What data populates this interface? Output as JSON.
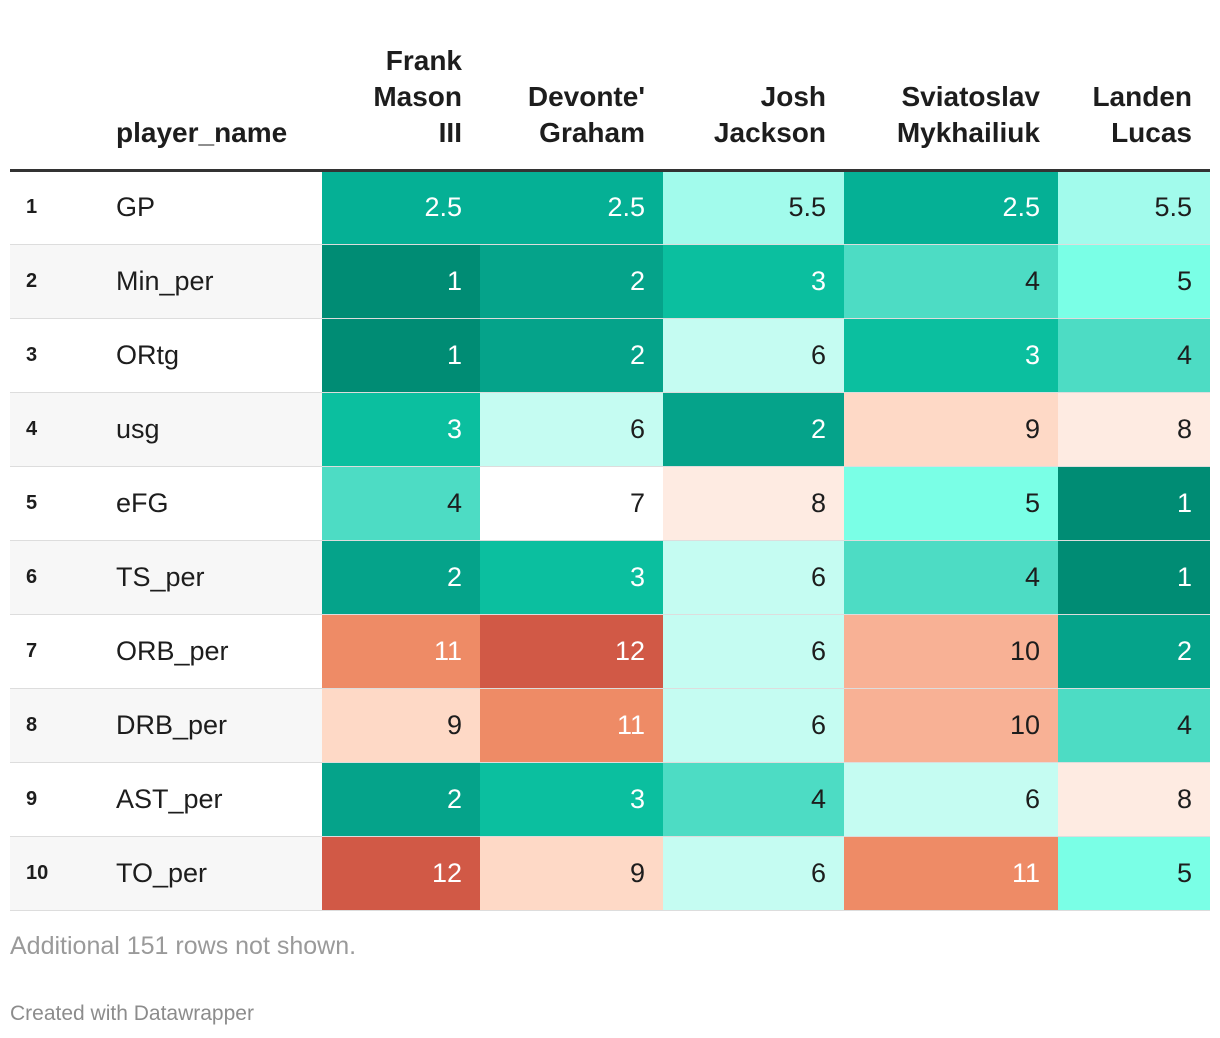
{
  "chart_data": {
    "type": "table",
    "index_header": "",
    "name_header": "player_name",
    "columns": [
      "Frank Mason III",
      "Devonte' Graham",
      "Josh Jackson",
      "Sviatoslav Mykhailiuk",
      "Landen Lucas"
    ],
    "column_lines": [
      [
        "Frank",
        "Mason",
        "III"
      ],
      [
        "Devonte'",
        "Graham"
      ],
      [
        "Josh",
        "Jackson"
      ],
      [
        "Sviatoslav",
        "Mykhailiuk"
      ],
      [
        "Landen",
        "Lucas"
      ]
    ],
    "rows": [
      {
        "index": "1",
        "name": "GP",
        "values": [
          2.5,
          2.5,
          5.5,
          2.5,
          5.5
        ]
      },
      {
        "index": "2",
        "name": "Min_per",
        "values": [
          1,
          2,
          3,
          4,
          5
        ]
      },
      {
        "index": "3",
        "name": "ORtg",
        "values": [
          1,
          2,
          6,
          3,
          4
        ]
      },
      {
        "index": "4",
        "name": "usg",
        "values": [
          3,
          6,
          2,
          9,
          8
        ]
      },
      {
        "index": "5",
        "name": "eFG",
        "values": [
          4,
          7,
          8,
          5,
          1
        ]
      },
      {
        "index": "6",
        "name": "TS_per",
        "values": [
          2,
          3,
          6,
          4,
          1
        ]
      },
      {
        "index": "7",
        "name": "ORB_per",
        "values": [
          11,
          12,
          6,
          10,
          2
        ]
      },
      {
        "index": "8",
        "name": "DRB_per",
        "values": [
          9,
          11,
          6,
          10,
          4
        ]
      },
      {
        "index": "9",
        "name": "AST_per",
        "values": [
          2,
          3,
          4,
          6,
          8
        ]
      },
      {
        "index": "10",
        "name": "TO_per",
        "values": [
          12,
          9,
          6,
          11,
          5
        ]
      }
    ],
    "color_scale": [
      {
        "value": 1,
        "bg": "#008c74",
        "fg": "#ffffff"
      },
      {
        "value": 2,
        "bg": "#05a38a",
        "fg": "#ffffff"
      },
      {
        "value": 2.5,
        "bg": "#05b095",
        "fg": "#ffffff"
      },
      {
        "value": 3,
        "bg": "#0bbf9f",
        "fg": "#ffffff"
      },
      {
        "value": 4,
        "bg": "#4ddcc4",
        "fg": "#1d1d1d"
      },
      {
        "value": 5,
        "bg": "#7affe6",
        "fg": "#1d1d1d"
      },
      {
        "value": 5.5,
        "bg": "#a2fbec",
        "fg": "#1d1d1d"
      },
      {
        "value": 6,
        "bg": "#c5fcf2",
        "fg": "#1d1d1d"
      },
      {
        "value": 7,
        "bg": "#ffffff",
        "fg": "#1d1d1d"
      },
      {
        "value": 8,
        "bg": "#feebe2",
        "fg": "#1d1d1d"
      },
      {
        "value": 9,
        "bg": "#fed9c6",
        "fg": "#1d1d1d"
      },
      {
        "value": 10,
        "bg": "#f8b195",
        "fg": "#1d1d1d"
      },
      {
        "value": 11,
        "bg": "#ee8b66",
        "fg": "#ffffff"
      },
      {
        "value": 12,
        "bg": "#d15946",
        "fg": "#ffffff"
      }
    ]
  },
  "footer": {
    "note": "Additional 151 rows not shown.",
    "credit": "Created with Datawrapper"
  }
}
